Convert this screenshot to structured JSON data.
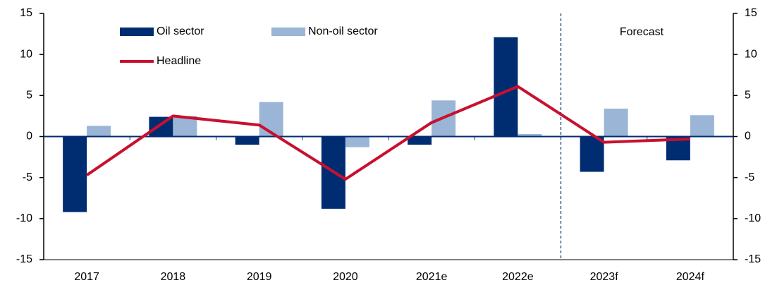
{
  "chart_data": {
    "type": "bar",
    "categories": [
      "2017",
      "2018",
      "2019",
      "2020",
      "2021e",
      "2022e",
      "2023f",
      "2024f"
    ],
    "series": [
      {
        "name": "Oil sector",
        "color": "#002d72",
        "values": [
          -9.2,
          2.4,
          -1.0,
          -8.8,
          -1.0,
          12.1,
          -4.3,
          -2.9
        ]
      },
      {
        "name": "Non-oil sector",
        "color": "#9ab5d6",
        "values": [
          1.3,
          2.5,
          4.2,
          -1.3,
          4.4,
          0.3,
          3.4,
          2.6
        ]
      },
      {
        "name": "Headline",
        "color": "#c8102e",
        "type": "line",
        "values": [
          -4.7,
          2.5,
          1.4,
          -5.2,
          1.7,
          6.1,
          -0.7,
          -0.3
        ]
      }
    ],
    "annotation": "Forecast",
    "ylim": [
      -15,
      15
    ],
    "yticks": [
      -15,
      -10,
      -5,
      0,
      5,
      10,
      15
    ],
    "y2lim": [
      -15,
      15
    ],
    "y2ticks": [
      -15,
      -10,
      -5,
      0,
      5,
      10,
      15
    ],
    "legend": "top-left"
  }
}
